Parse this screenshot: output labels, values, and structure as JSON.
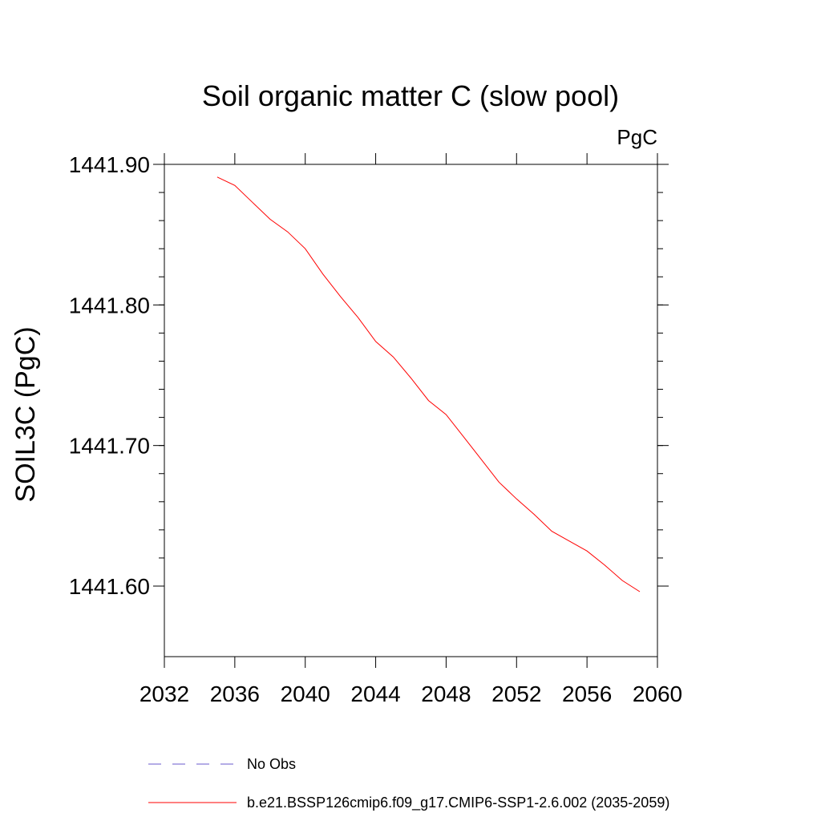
{
  "chart_data": {
    "type": "line",
    "title": "Soil organic matter C (slow pool)",
    "units_label": "PgC",
    "xlabel": "",
    "ylabel": "SOIL3C  (PgC)",
    "xlim": [
      2032,
      2060
    ],
    "ylim": [
      1441.55,
      1441.9
    ],
    "x_ticks": [
      "2032",
      "2036",
      "2040",
      "2044",
      "2048",
      "2052",
      "2056",
      "2060"
    ],
    "y_ticks": [
      "1441.60",
      "1441.70",
      "1441.80",
      "1441.90"
    ],
    "series": [
      {
        "name": "b.e21.BSSP126cmip6.f09_g17.CMIP6-SSP1-2.6.002 (2035-2059)",
        "color": "#ff0000",
        "style": "solid",
        "x": [
          2035,
          2036,
          2037,
          2038,
          2039,
          2040,
          2041,
          2042,
          2043,
          2044,
          2045,
          2046,
          2047,
          2048,
          2049,
          2050,
          2051,
          2052,
          2053,
          2054,
          2055,
          2056,
          2057,
          2058,
          2059
        ],
        "values": [
          1441.891,
          1441.885,
          1441.873,
          1441.861,
          1441.852,
          1441.84,
          1441.822,
          1441.806,
          1441.791,
          1441.774,
          1441.763,
          1441.748,
          1441.732,
          1441.722,
          1441.706,
          1441.69,
          1441.674,
          1441.662,
          1441.651,
          1441.639,
          1441.632,
          1441.625,
          1441.615,
          1441.604,
          1441.596
        ]
      }
    ],
    "legend": [
      {
        "label": "No Obs",
        "color": "#6a5acd",
        "style": "dashed"
      },
      {
        "label": "b.e21.BSSP126cmip6.f09_g17.CMIP6-SSP1-2.6.002 (2035-2059)",
        "color": "#ff0000",
        "style": "solid"
      }
    ]
  }
}
